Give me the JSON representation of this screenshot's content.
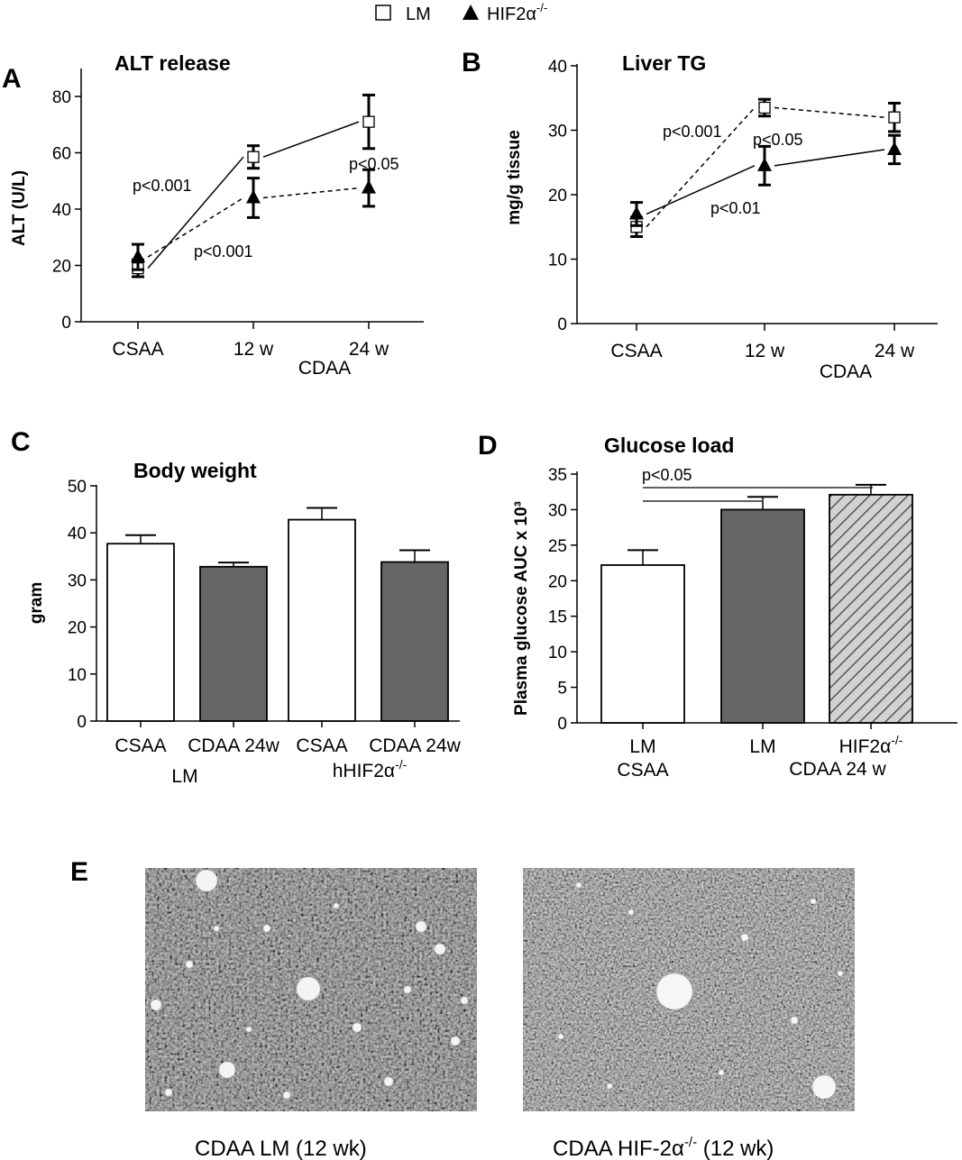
{
  "legend": {
    "items": [
      {
        "label": "LM",
        "marker": "square-open"
      },
      {
        "label": "HIF2α",
        "sup": "-/-",
        "marker": "triangle-filled"
      }
    ]
  },
  "chart_data": [
    {
      "panel": "A",
      "type": "line",
      "title": "ALT release",
      "ylabel": "ALT (U/L)",
      "ylim": [
        0,
        80
      ],
      "yticks": [
        0,
        20,
        40,
        60,
        80
      ],
      "categories": [
        "CSAA",
        "12 w",
        "24 w"
      ],
      "group_label": "CDAA",
      "series": [
        {
          "label": "LM",
          "marker": "square-open",
          "line": "solid",
          "values": [
            19,
            58.5,
            71
          ],
          "errors": [
            3,
            4,
            9.5
          ]
        },
        {
          "label": "HIF2α-/-",
          "marker": "triangle-filled",
          "line": "dashed",
          "values": [
            23,
            44,
            47.5
          ],
          "errors": [
            4.5,
            7,
            6.5
          ]
        }
      ],
      "annotations": [
        "p<0.001",
        "p<0.001",
        "p<0.05"
      ]
    },
    {
      "panel": "B",
      "type": "line",
      "title": "Liver TG",
      "ylabel": "mg/g tissue",
      "ylim": [
        0,
        40
      ],
      "yticks": [
        0,
        10,
        20,
        30,
        40
      ],
      "categories": [
        "CSAA",
        "12 w",
        "24 w"
      ],
      "group_label": "CDAA",
      "series": [
        {
          "label": "LM",
          "marker": "square-open",
          "line": "dashed",
          "values": [
            15,
            33.5,
            32
          ],
          "errors": [
            1.5,
            1.3,
            2.2
          ]
        },
        {
          "label": "HIF2α-/-",
          "marker": "triangle-filled",
          "line": "solid",
          "values": [
            17,
            24.5,
            27
          ],
          "errors": [
            1.8,
            3,
            2.2
          ]
        }
      ],
      "annotations": [
        "p<0.001",
        "p<0.05",
        "p<0.01"
      ]
    },
    {
      "panel": "C",
      "type": "bar",
      "title": "Body weight",
      "ylabel": "gram",
      "ylim": [
        0,
        50
      ],
      "yticks": [
        0,
        10,
        20,
        30,
        40,
        50
      ],
      "categories": [
        "CSAA",
        "CDAA 24w",
        "CSAA",
        "CDAA 24w"
      ],
      "groups": [
        {
          "label": "LM"
        },
        {
          "label": "hHIF2α",
          "sup": "-/-"
        }
      ],
      "values": [
        37.7,
        32.8,
        42.8,
        33.8
      ],
      "errors": [
        1.8,
        0.9,
        2.5,
        2.5
      ],
      "fills": [
        "#ffffff",
        "#666666",
        "#ffffff",
        "#666666"
      ]
    },
    {
      "panel": "D",
      "type": "bar",
      "title": "Glucose load",
      "ylabel": "Plasma glucose AUC x 10³",
      "ylim": [
        0,
        35
      ],
      "yticks": [
        0,
        5,
        10,
        15,
        20,
        25,
        30,
        35
      ],
      "categories": [
        {
          "line1": "LM",
          "line2": "CSAA"
        },
        {
          "line1": "LM"
        },
        {
          "line1": "HIF2α",
          "sup": "-/-"
        }
      ],
      "group_label": "CDAA 24 w",
      "values": [
        22.2,
        30,
        32.1
      ],
      "errors": [
        2.1,
        1.8,
        1.4
      ],
      "fills": [
        "#ffffff",
        "#666666",
        "hatched"
      ],
      "annotations": [
        "p<0.05"
      ]
    }
  ],
  "panel_e": {
    "letter": "E",
    "images": [
      {
        "caption": "CDAA  LM   (12 wk)"
      },
      {
        "caption": "CDAA  HIF-2α",
        "caption_sup": "-/-",
        "caption_end": "  (12 wk)"
      }
    ]
  }
}
